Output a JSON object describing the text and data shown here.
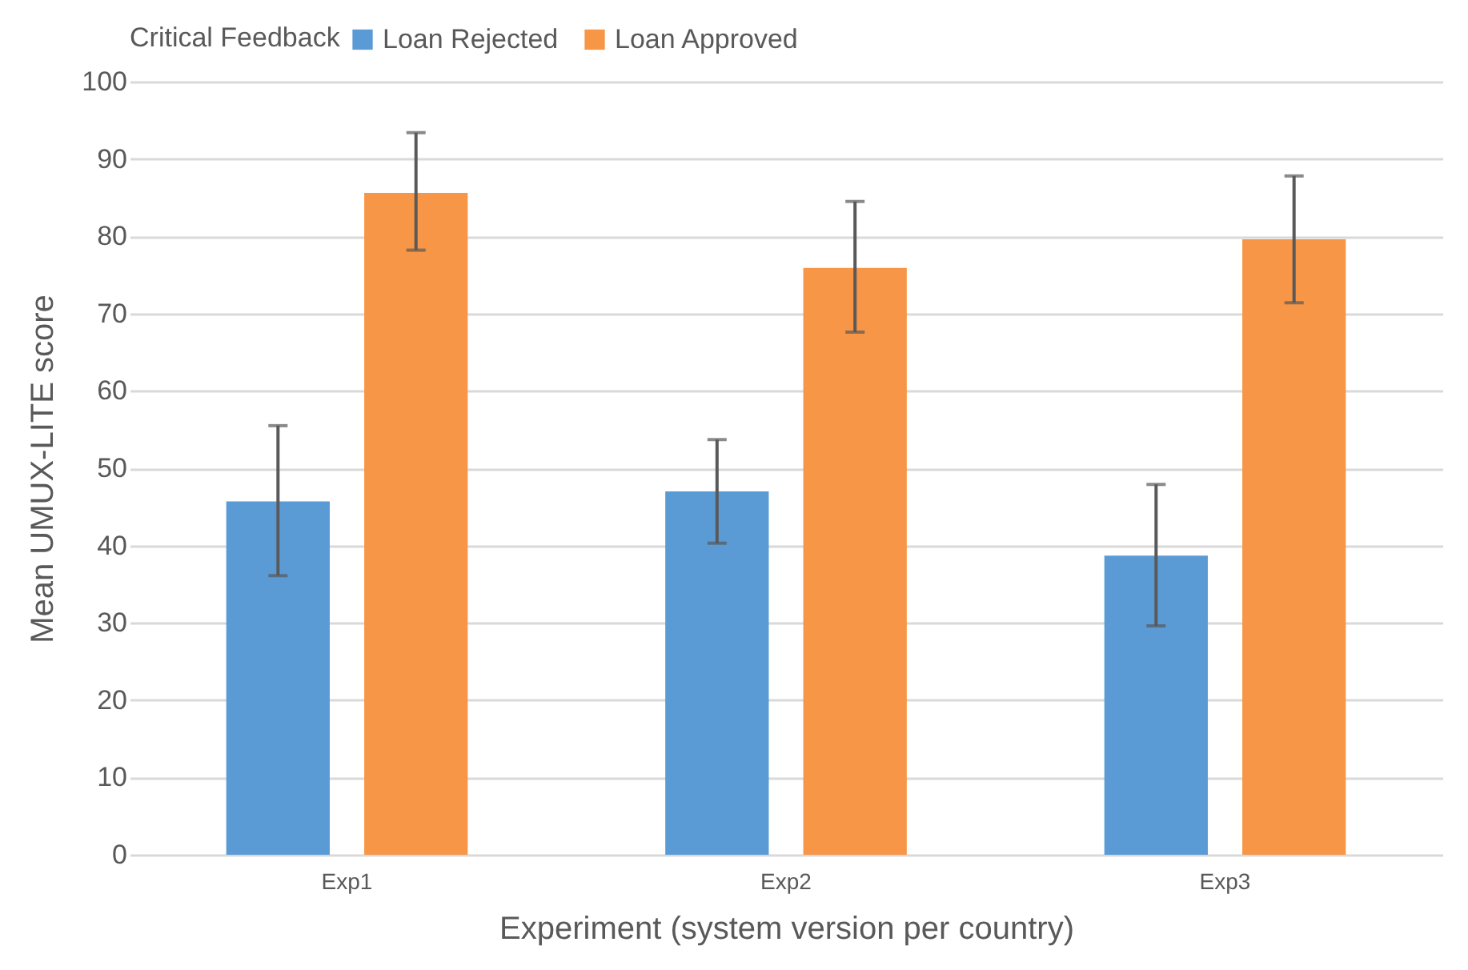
{
  "chart_data": {
    "type": "bar",
    "categories": [
      "Exp1",
      "Exp2",
      "Exp3"
    ],
    "series": [
      {
        "name": "Loan Rejected",
        "color": "#5b9bd5",
        "values": [
          45.7,
          47.0,
          38.7
        ],
        "errors": [
          [
            36.1,
            55.5
          ],
          [
            40.3,
            53.7
          ],
          [
            29.6,
            47.9
          ]
        ]
      },
      {
        "name": "Loan Approved",
        "color": "#f79646",
        "values": [
          85.6,
          75.9,
          79.6
        ],
        "errors": [
          [
            78.2,
            93.4
          ],
          [
            67.6,
            84.5
          ],
          [
            71.4,
            87.8
          ]
        ]
      }
    ],
    "legend_title": "Critical Feedback",
    "legend": "top",
    "xlabel": "Experiment (system version per country)",
    "ylabel": "Mean UMUX-LITE score",
    "ylim": [
      0,
      100
    ],
    "yticks": [
      0,
      10,
      20,
      30,
      40,
      50,
      60,
      70,
      80,
      90,
      100
    ],
    "grid": "y"
  }
}
